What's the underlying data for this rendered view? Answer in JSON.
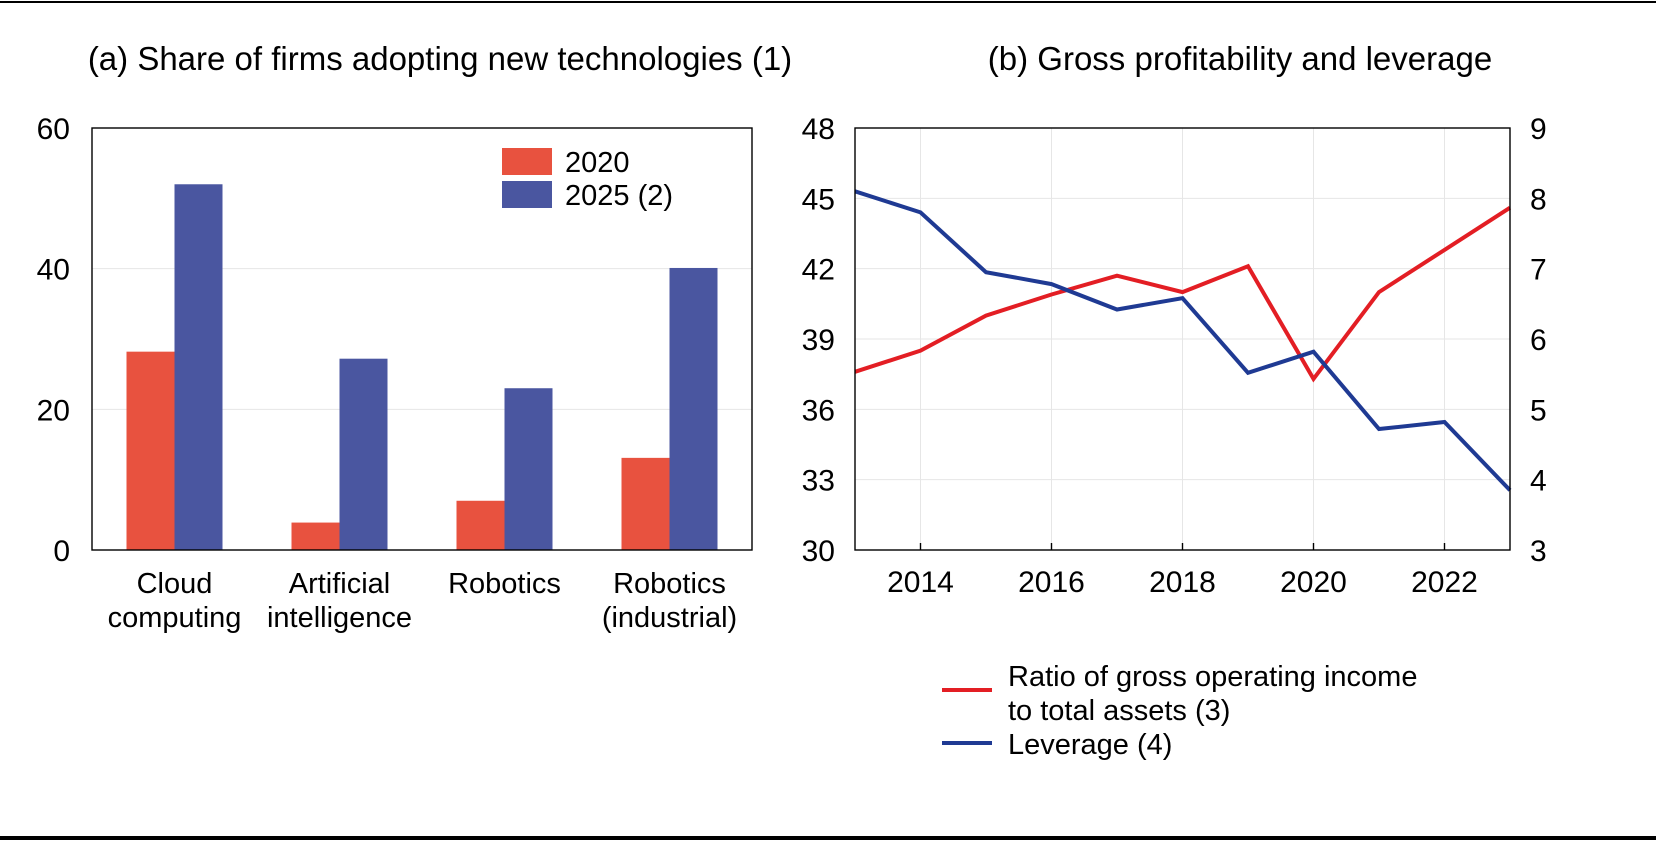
{
  "chart_data": [
    {
      "type": "bar",
      "title": "(a) Share of firms adopting new technologies (1)",
      "categories": [
        [
          "Cloud",
          "computing"
        ],
        [
          "Artificial",
          "intelligence"
        ],
        [
          "Robotics"
        ],
        [
          "Robotics",
          "(industrial)"
        ]
      ],
      "series": [
        {
          "name": "2020",
          "values": [
            28.2,
            3.9,
            7.0,
            13.1
          ],
          "color": "#e8523f"
        },
        {
          "name": "2025 (2)",
          "values": [
            52.0,
            27.2,
            23.0,
            40.1
          ],
          "color": "#4a56a0"
        }
      ],
      "ylim": [
        0,
        60
      ],
      "yticks": [
        "0",
        "20",
        "40",
        "60"
      ],
      "ytick_values": [
        0,
        20,
        40,
        60
      ],
      "grid": true,
      "legend": "top-right"
    },
    {
      "type": "line",
      "title": "(b) Gross profitability and leverage",
      "x": [
        2013,
        2014,
        2015,
        2016,
        2017,
        2018,
        2019,
        2020,
        2021,
        2022,
        2023
      ],
      "xlim": [
        2013,
        2023
      ],
      "xticks": [
        "2014",
        "2016",
        "2018",
        "2020",
        "2022"
      ],
      "xtick_values": [
        2014,
        2016,
        2018,
        2020,
        2022
      ],
      "ylim_left": [
        30,
        48
      ],
      "yticks_left": [
        "30",
        "33",
        "36",
        "39",
        "42",
        "45",
        "48"
      ],
      "ytick_left_values": [
        30,
        33,
        36,
        39,
        42,
        45,
        48
      ],
      "ylim_right": [
        3,
        9
      ],
      "yticks_right": [
        "3",
        "4",
        "5",
        "6",
        "7",
        "8",
        "9"
      ],
      "ytick_right_values": [
        3,
        4,
        5,
        6,
        7,
        8,
        9
      ],
      "grid": true,
      "series": [
        {
          "name": "Ratio of gross operating income to total assets (3)",
          "legend_lines": [
            "Ratio of gross operating income",
            "to total assets (3)"
          ],
          "axis": "left",
          "color": "#e31e24",
          "values": [
            37.6,
            38.5,
            40.0,
            40.9,
            41.7,
            41.0,
            42.1,
            37.3,
            41.0,
            42.8,
            44.6
          ]
        },
        {
          "name": "Leverage (4)",
          "legend_lines": [
            "Leverage (4)"
          ],
          "axis": "right",
          "color": "#1f3a93",
          "values": [
            8.1,
            7.8,
            6.95,
            6.78,
            6.42,
            6.58,
            5.52,
            5.82,
            4.72,
            4.82,
            3.85
          ]
        }
      ],
      "legend": "bottom"
    }
  ]
}
